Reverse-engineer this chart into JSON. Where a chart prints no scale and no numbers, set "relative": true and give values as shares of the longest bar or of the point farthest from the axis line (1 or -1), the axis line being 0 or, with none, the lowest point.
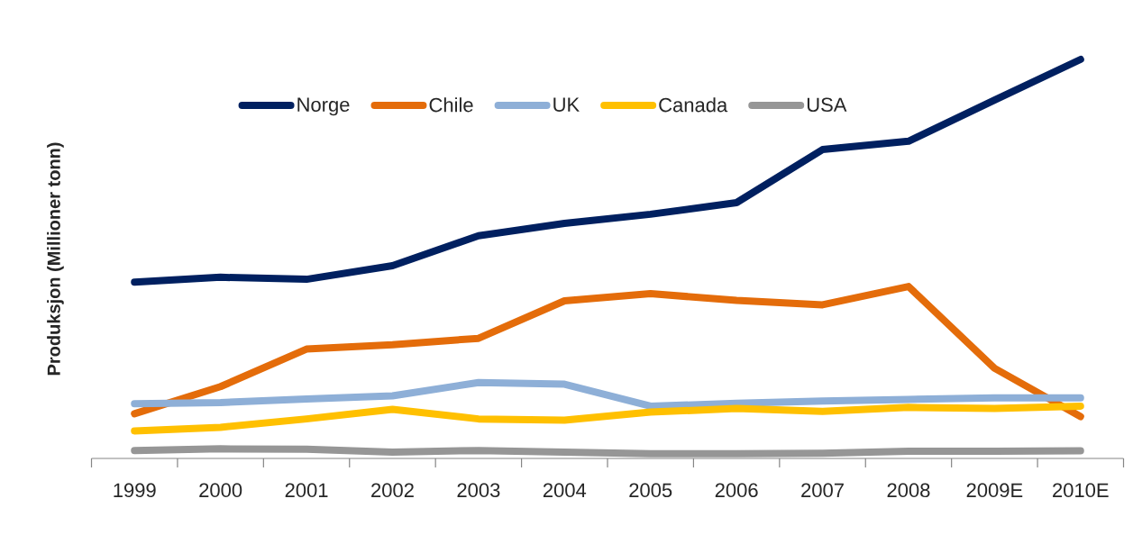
{
  "chart_data": {
    "type": "line",
    "ylabel": "Produksjon (Millioner tonn)",
    "categories": [
      "1999",
      "2000",
      "2001",
      "2002",
      "2003",
      "2004",
      "2005",
      "2006",
      "2007",
      "2008",
      "2009E",
      "2010E"
    ],
    "relative": true,
    "legend": "top",
    "series": [
      {
        "name": "Norge",
        "color": "#002060",
        "values": [
          0.442,
          0.454,
          0.449,
          0.483,
          0.558,
          0.589,
          0.612,
          0.641,
          0.774,
          0.795,
          0.898,
          1
        ]
      },
      {
        "name": "Chile",
        "color": "#E46C0A",
        "values": [
          0.112,
          0.18,
          0.274,
          0.285,
          0.301,
          0.395,
          0.413,
          0.396,
          0.385,
          0.431,
          0.226,
          0.105
        ]
      },
      {
        "name": "UK",
        "color": "#8EAFD7",
        "values": [
          0.137,
          0.14,
          0.149,
          0.157,
          0.19,
          0.186,
          0.131,
          0.138,
          0.144,
          0.148,
          0.152,
          0.152
        ]
      },
      {
        "name": "Canada",
        "color": "#FFC000",
        "values": [
          0.069,
          0.078,
          0.099,
          0.123,
          0.099,
          0.096,
          0.116,
          0.125,
          0.118,
          0.128,
          0.125,
          0.131
        ]
      },
      {
        "name": "USA",
        "color": "#969696",
        "values": [
          0.02,
          0.024,
          0.023,
          0.016,
          0.02,
          0.016,
          0.012,
          0.012,
          0.013,
          0.018,
          0.018,
          0.019
        ]
      }
    ]
  }
}
